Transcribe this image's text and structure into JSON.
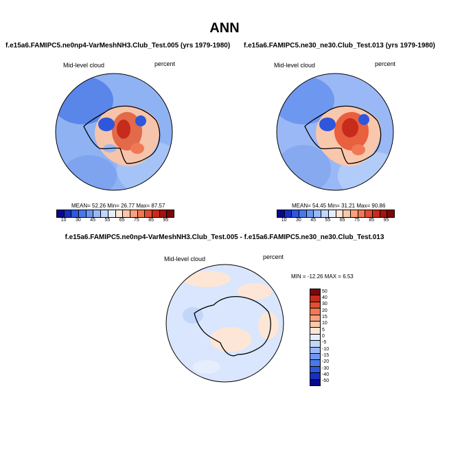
{
  "main_title": "ANN",
  "colors": {
    "abs_scale": [
      "#08088c",
      "#1a2fbf",
      "#2e57db",
      "#4a78e8",
      "#6e97f0",
      "#9ab8f5",
      "#c2d6fa",
      "#e6eefe",
      "#fde6d6",
      "#fbc7ac",
      "#f7a17f",
      "#f07955",
      "#e24e33",
      "#c72b1c",
      "#a2150f",
      "#7a0808"
    ],
    "diff_scale": [
      "#08088c",
      "#1a2fbf",
      "#2e57db",
      "#4a78e8",
      "#6e97f0",
      "#9ab8f5",
      "#c2d6fa",
      "#e6eefe",
      "#fde6d6",
      "#fbc7ac",
      "#f7a17f",
      "#f07955",
      "#e24e33",
      "#c72b1c",
      "#7a0808"
    ]
  },
  "chart_data": [
    {
      "type": "heatmap",
      "title": "f.e15a6.FAMIPC5.ne0np4-VarMeshNH3.Club_Test.005 (yrs 1979-1980)",
      "variable": "Mid-level cloud",
      "units": "percent",
      "stats": {
        "mean": "52.26",
        "min": "26.77",
        "max": "87.57"
      },
      "stats_labels": {
        "mean": "MEAN=",
        "min": "Min=",
        "max": "Max="
      },
      "colorbar_ticks": [
        "10",
        "30",
        "45",
        "55",
        "65",
        "75",
        "85",
        "95"
      ]
    },
    {
      "type": "heatmap",
      "title": "f.e15a6.FAMIPC5.ne30_ne30.Club_Test.013 (yrs 1979-1980)",
      "variable": "Mid-level cloud",
      "units": "percent",
      "stats": {
        "mean": "54.45",
        "min": "31.21",
        "max": "90.86"
      },
      "stats_labels": {
        "mean": "MEAN=",
        "min": "Min=",
        "max": "Max="
      },
      "colorbar_ticks": [
        "10",
        "30",
        "45",
        "55",
        "65",
        "75",
        "85",
        "95"
      ]
    },
    {
      "type": "heatmap",
      "title": "f.e15a6.FAMIPC5.ne0np4-VarMeshNH3.Club_Test.005 - f.e15a6.FAMIPC5.ne30_ne30.Club_Test.013",
      "variable": "Mid-level cloud",
      "units": "percent",
      "stats": {
        "min": "-12.26",
        "max": "6.53"
      },
      "stats_labels": {
        "min": "MIN =",
        "max": "MAX ="
      },
      "colorbar_ticks": [
        "50",
        "40",
        "30",
        "20",
        "15",
        "10",
        "5",
        "0",
        "-5",
        "-10",
        "-15",
        "-20",
        "-30",
        "-40",
        "-50"
      ]
    }
  ]
}
